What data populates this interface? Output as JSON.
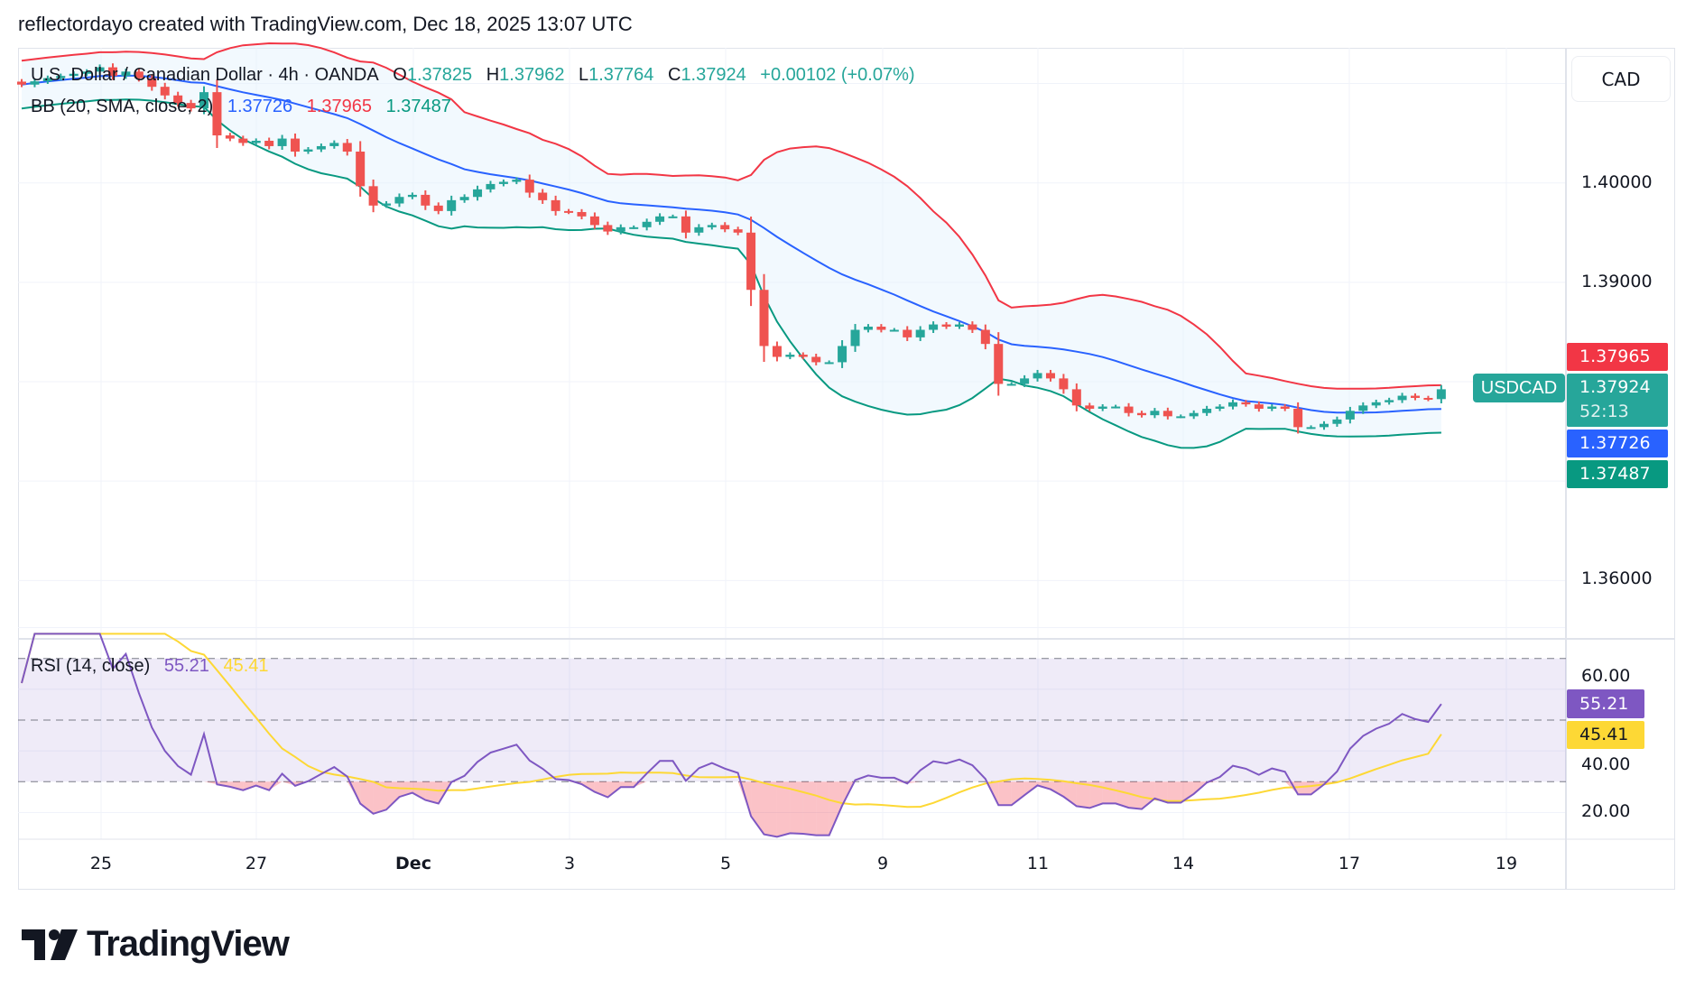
{
  "header": {
    "caption": "reflectordayo created with TradingView.com, Dec 18, 2025 13:07 UTC"
  },
  "legend": {
    "symbol": "U.S. Dollar / Canadian Dollar · 4h · OANDA",
    "o_label": "O",
    "o": "1.37825",
    "h_label": "H",
    "h": "1.37962",
    "l_label": "L",
    "l": "1.37764",
    "c_label": "C",
    "c": "1.37924",
    "change": "+0.00102 (+0.07%)",
    "bb_title": "BB (20, SMA, close, 2)",
    "bb_basis": "1.37726",
    "bb_upper": "1.37965",
    "bb_lower": "1.37487"
  },
  "currency_button": "CAD",
  "price_axis": {
    "ticks": [
      "1.40000",
      "1.39000",
      "1.36000"
    ],
    "tick_values": [
      1.4,
      1.39,
      1.36
    ],
    "labels": {
      "upper": "1.37965",
      "last": "1.37924",
      "countdown": "52:13",
      "basis": "1.37726",
      "lower": "1.37487"
    },
    "symbol_label": "USDCAD"
  },
  "rsi": {
    "title": "RSI (14, close)",
    "value": "55.21",
    "ma": "45.41",
    "ticks": [
      "60.00",
      "40.00",
      "20.00"
    ],
    "tick_values": [
      60,
      40,
      20
    ],
    "bands": [
      70,
      50,
      30
    ]
  },
  "time_axis": {
    "labels": [
      "25",
      "27",
      "Dec",
      "3",
      "5",
      "9",
      "11",
      "14",
      "17",
      "19"
    ]
  },
  "logo": "TradingView",
  "colors": {
    "up": "#26a69a",
    "down": "#ef5350",
    "bb_basis": "#2962ff",
    "bb_upper": "#f23645",
    "bb_lower": "#089981",
    "rsi": "#7e57c2",
    "rsi_ma": "#fdd835",
    "band_fill": "#e3f2fd"
  },
  "chart_data": {
    "type": "candlestick",
    "symbol": "USDCAD",
    "interval": "4h",
    "ylim": [
      1.35413,
      1.41359
    ],
    "closes": [
      1.40989,
      1.41022,
      1.41054,
      1.41076,
      1.41098,
      1.4112,
      1.41163,
      1.41076,
      1.4112,
      1.41054,
      1.40967,
      1.4088,
      1.40804,
      1.4075,
      1.40913,
      1.40478,
      1.40446,
      1.40402,
      1.40424,
      1.4037,
      1.40446,
      1.40315,
      1.40337,
      1.4037,
      1.40402,
      1.40315,
      1.39967,
      1.39772,
      1.39793,
      1.39859,
      1.3988,
      1.39772,
      1.39717,
      1.39826,
      1.39859,
      1.39935,
      1.39989,
      1.40011,
      1.40033,
      1.39902,
      1.39826,
      1.39717,
      1.39707,
      1.39663,
      1.39576,
      1.39511,
      1.39554,
      1.39554,
      1.39609,
      1.39663,
      1.39663,
      1.395,
      1.39554,
      1.39576,
      1.39533,
      1.395,
      1.38924,
      1.38359,
      1.3825,
      1.38272,
      1.3825,
      1.38196,
      1.38196,
      1.38359,
      1.38522,
      1.38554,
      1.38522,
      1.38522,
      1.38446,
      1.38522,
      1.38576,
      1.38554,
      1.38576,
      1.38522,
      1.3838,
      1.37978,
      1.37978,
      1.38033,
      1.38087,
      1.38033,
      1.37924,
      1.37761,
      1.37728,
      1.3775,
      1.3775,
      1.37685,
      1.37663,
      1.37707,
      1.37652,
      1.37652,
      1.37685,
      1.37728,
      1.3775,
      1.37793,
      1.37772,
      1.37728,
      1.3775,
      1.37728,
      1.37543,
      1.37543,
      1.37576,
      1.3762,
      1.37707,
      1.37761,
      1.37793,
      1.37815,
      1.37859,
      1.37837,
      1.37825,
      1.37924
    ],
    "bollinger": {
      "length": 20,
      "mult": 2,
      "last": {
        "basis": 1.37726,
        "upper": 1.37965,
        "lower": 1.37487
      }
    },
    "rsi": {
      "length": 14,
      "last": 55.21,
      "ma_last": 45.41,
      "ylim": [
        10,
        80
      ]
    }
  }
}
